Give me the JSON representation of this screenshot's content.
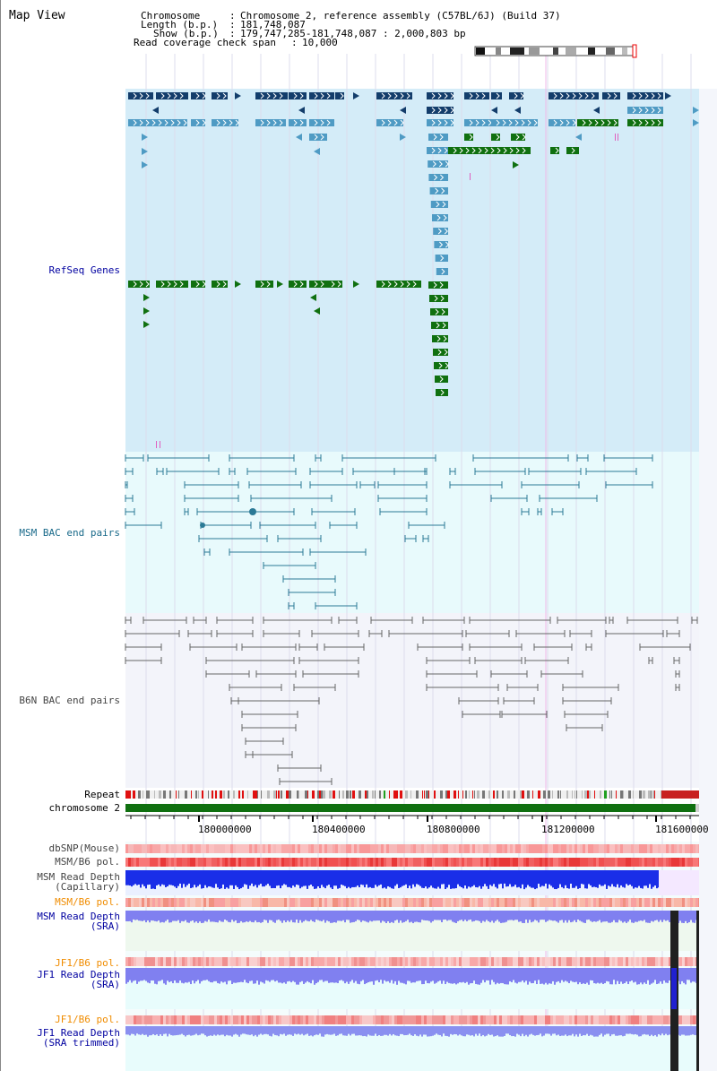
{
  "panel_title": "Map View",
  "info": {
    "chromosome_label": "Chromosome",
    "chromosome_value": "Chromosome 2, reference assembly (C57BL/6J) (Build 37)",
    "length_label": "Length (b.p.)",
    "length_value": "181,748,087",
    "show_label": "Show (b.p.)",
    "show_value": "179,747,285-181,748,087 : 2,000,803 bp",
    "span_label": "Read coverage check span",
    "span_value": "10,000"
  },
  "tracks": {
    "refseq": "RefSeq Genes",
    "msm_bac": "MSM BAC end pairs",
    "b6n_bac": "B6N BAC end pairs",
    "repeat": "Repeat",
    "chromosome": "chromosome 2",
    "dbsnp": "dbSNP(Mouse)",
    "msm_b6_pol_1": "MSM/B6 pol.",
    "msm_depth_cap_1": "MSM Read Depth",
    "msm_depth_cap_2": "(Capillary)",
    "msm_b6_pol_2": "MSM/B6 pol.",
    "msm_depth_sra_1": "MSM Read Depth",
    "msm_depth_sra_2": "(SRA)",
    "jf1_b6_pol_1": "JF1/B6 pol.",
    "jf1_depth_sra_1": "JF1 Read Depth",
    "jf1_depth_sra_2": "(SRA)",
    "jf1_b6_pol_2": "JF1/B6 pol.",
    "jf1_depth_trim_1": "JF1 Read Depth",
    "jf1_depth_trim_2": "(SRA trimmed)"
  },
  "axis": {
    "ticks": [
      "180000000",
      "180400000",
      "180800000",
      "181200000",
      "181600000"
    ]
  },
  "colors": {
    "refseq_bg": "#d4ecf8",
    "msm_bg": "#e8fafc",
    "b6n_bg": "#f3f4fa",
    "gene_navy": "#133d6b",
    "gene_blue": "#4f9bc4",
    "gene_green": "#107010",
    "msm_line": "#2b7a96",
    "b6n_line": "#666666",
    "chromosome_bar": "#107010",
    "depth_blue": "#1a2ee8",
    "depth_light": "#8080f0",
    "pol_red": "#f05050",
    "pol_pink": "#f8b0b0",
    "label_blue": "#0000a0",
    "label_teal": "#1a6a8a",
    "label_orange": "#f08c00"
  }
}
